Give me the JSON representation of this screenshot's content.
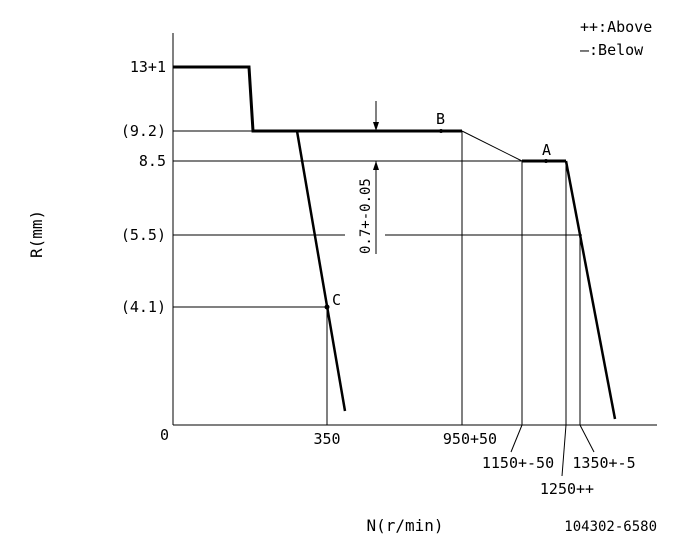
{
  "legend": {
    "above": "++:Above",
    "below": "—:Below"
  },
  "axes": {
    "y_title": "R(mm)",
    "x_title": "N(r/min)",
    "origin": "0"
  },
  "y_labels": {
    "y13": "13+1",
    "y92": "(9.2)",
    "y85": "8.5",
    "y55": "(5.5)",
    "y41": "(4.1)"
  },
  "x_labels": {
    "x350": "350",
    "x950": "950+50",
    "x1150": "1150+-50",
    "x1250": "1250++",
    "x1350": "1350+-5"
  },
  "points": {
    "A": "A",
    "B": "B",
    "C": "C"
  },
  "dimension": "0.7+-0.05",
  "drawing_number": "104302-6580"
}
